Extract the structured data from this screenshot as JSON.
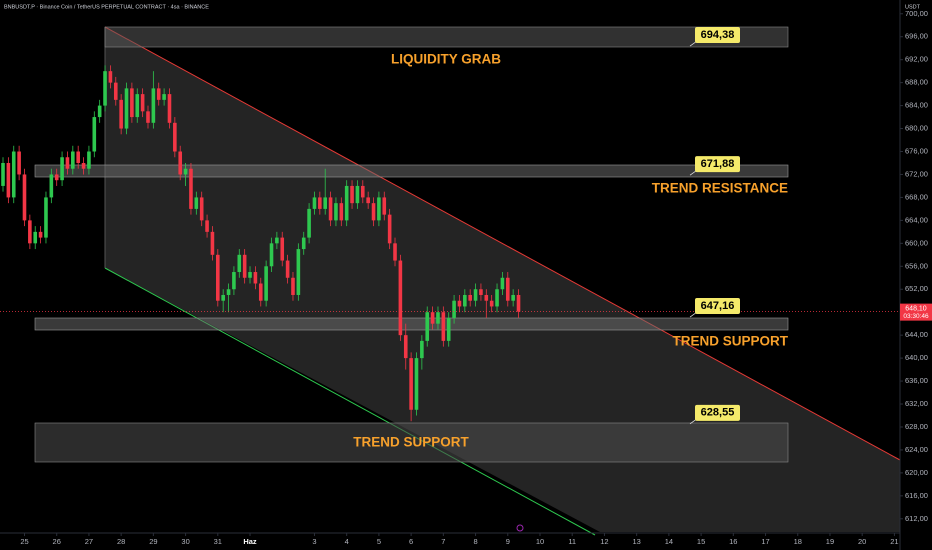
{
  "chart_data": {
    "type": "candlestick",
    "header": "BNBUSDT.P · Binance Coin / TetherUS PERPETUAL CONTRACT · 4sa · BINANCE",
    "currency": "USDT",
    "up_color": "#2ec84f",
    "down_color": "#f23645",
    "x": [
      0,
      1,
      2,
      3,
      4,
      5,
      6,
      7,
      8,
      9,
      10,
      11,
      12,
      13,
      14,
      15,
      16,
      17,
      18,
      19,
      20,
      21,
      22,
      23,
      24,
      25,
      26,
      27,
      28,
      29,
      30,
      31,
      32,
      33,
      34,
      35,
      36,
      37,
      38,
      39,
      40,
      41,
      42,
      43,
      44,
      45,
      46,
      47,
      48,
      49,
      50,
      51,
      52,
      53,
      54,
      55,
      56,
      57,
      58,
      59,
      60,
      61,
      62,
      63,
      64,
      65,
      66,
      67,
      68,
      69,
      70,
      71,
      72,
      73,
      74,
      75,
      76,
      77,
      78,
      79,
      80,
      81,
      82,
      83,
      84,
      85,
      86,
      87,
      88,
      89,
      90,
      91,
      92,
      93,
      94,
      95,
      96
    ],
    "open": [
      670,
      674,
      668,
      676,
      672,
      664,
      660,
      662,
      661,
      668,
      672,
      671,
      675,
      673,
      676,
      674,
      673,
      676,
      682,
      684,
      690,
      688,
      685,
      680,
      687,
      682,
      686,
      683,
      681,
      687,
      685,
      686,
      681,
      676,
      672,
      673,
      666,
      668,
      664,
      662,
      658,
      650,
      651,
      652,
      655,
      658,
      654,
      655,
      653,
      650,
      656,
      660,
      661,
      657,
      654,
      651,
      659,
      661,
      666,
      668,
      666,
      668,
      664,
      667,
      664,
      670,
      667,
      670,
      668,
      667,
      664,
      668,
      665,
      660,
      657,
      644,
      640,
      631,
      640,
      643,
      648,
      646,
      648,
      643,
      647,
      650,
      649,
      651,
      650,
      652,
      651,
      650,
      649,
      652,
      654,
      650,
      651
    ],
    "high": [
      675,
      675,
      677,
      677,
      673,
      665,
      663,
      663,
      669,
      673,
      673,
      676,
      676,
      677,
      677,
      675,
      677,
      683,
      685,
      691,
      691,
      689,
      686,
      688,
      688,
      687,
      687,
      684,
      690,
      688,
      687,
      687,
      682,
      677,
      674,
      674,
      669,
      669,
      665,
      663,
      659,
      652,
      653,
      656,
      659,
      659,
      656,
      656,
      654,
      657,
      661,
      662,
      662,
      658,
      655,
      660,
      662,
      667,
      669,
      669,
      673,
      669,
      668,
      668,
      671,
      671,
      671,
      671,
      669,
      668,
      669,
      669,
      666,
      661,
      658,
      646,
      641,
      641,
      644,
      649,
      649,
      649,
      649,
      648,
      651,
      651,
      652,
      652,
      653,
      653,
      652,
      651,
      653,
      655,
      655,
      652,
      652
    ],
    "low": [
      669,
      667,
      667,
      671,
      663,
      659,
      659,
      660,
      660,
      667,
      670,
      670,
      672,
      672,
      673,
      672,
      672,
      675,
      681,
      683,
      687,
      684,
      679,
      679,
      681,
      681,
      682,
      680,
      680,
      684,
      684,
      680,
      675,
      671,
      670,
      665,
      665,
      663,
      661,
      657,
      649,
      648,
      648,
      651,
      654,
      653,
      653,
      652,
      649,
      649,
      655,
      659,
      656,
      653,
      650,
      650,
      658,
      660,
      665,
      665,
      665,
      663,
      663,
      663,
      663,
      666,
      666,
      667,
      666,
      663,
      663,
      664,
      659,
      656,
      643,
      638,
      629,
      630,
      638,
      642,
      645,
      645,
      642,
      642,
      646,
      648,
      648,
      649,
      649,
      650,
      647,
      648,
      648,
      651,
      649,
      649,
      647
    ],
    "close": [
      674,
      668,
      676,
      672,
      664,
      660,
      662,
      661,
      668,
      672,
      671,
      675,
      673,
      676,
      674,
      673,
      676,
      682,
      684,
      690,
      688,
      685,
      680,
      687,
      682,
      686,
      683,
      681,
      687,
      685,
      686,
      681,
      676,
      672,
      673,
      666,
      668,
      664,
      662,
      658,
      650,
      651,
      652,
      655,
      658,
      654,
      655,
      653,
      650,
      656,
      660,
      661,
      657,
      654,
      651,
      659,
      661,
      666,
      668,
      666,
      668,
      664,
      667,
      664,
      670,
      667,
      670,
      668,
      667,
      664,
      668,
      665,
      660,
      657,
      644,
      640,
      631,
      640,
      643,
      648,
      646,
      648,
      643,
      647,
      650,
      649,
      651,
      650,
      652,
      651,
      650,
      649,
      652,
      654,
      650,
      651,
      648.1
    ],
    "xlim": [
      -0.56,
      167.04
    ],
    "ylim": [
      609.7,
      702.4
    ],
    "xticks": [
      {
        "value": 4,
        "label": "25"
      },
      {
        "value": 10,
        "label": "26"
      },
      {
        "value": 16,
        "label": "27"
      },
      {
        "value": 22,
        "label": "28"
      },
      {
        "value": 28,
        "label": "29"
      },
      {
        "value": 34,
        "label": "30"
      },
      {
        "value": 40,
        "label": "31"
      },
      {
        "value": 46,
        "label": "Haz"
      },
      {
        "value": 58,
        "label": "3"
      },
      {
        "value": 64,
        "label": "4"
      },
      {
        "value": 70,
        "label": "5"
      },
      {
        "value": 76,
        "label": "6"
      },
      {
        "value": 82,
        "label": "7"
      },
      {
        "value": 88,
        "label": "8"
      },
      {
        "value": 94,
        "label": "9"
      },
      {
        "value": 100,
        "label": "10"
      },
      {
        "value": 106,
        "label": "11"
      },
      {
        "value": 112,
        "label": "12"
      },
      {
        "value": 118,
        "label": "13"
      },
      {
        "value": 124,
        "label": "14"
      },
      {
        "value": 130,
        "label": "15"
      },
      {
        "value": 136,
        "label": "16"
      },
      {
        "value": 142,
        "label": "17"
      },
      {
        "value": 148,
        "label": "18"
      },
      {
        "value": 154,
        "label": "19"
      },
      {
        "value": 160,
        "label": "20"
      },
      {
        "value": 166,
        "label": "21"
      }
    ],
    "yticks": [
      {
        "value": 612,
        "label": "612,00"
      },
      {
        "value": 616,
        "label": "616,00"
      },
      {
        "value": 620,
        "label": "620,00"
      },
      {
        "value": 624,
        "label": "624,00"
      },
      {
        "value": 628,
        "label": "628,00"
      },
      {
        "value": 632,
        "label": "632,00"
      },
      {
        "value": 636,
        "label": "636,00"
      },
      {
        "value": 640,
        "label": "640,00"
      },
      {
        "value": 644,
        "label": "644,00"
      },
      {
        "value": 648,
        "label": "648,00"
      },
      {
        "value": 652,
        "label": "652,00"
      },
      {
        "value": 656,
        "label": "656,00"
      },
      {
        "value": 660,
        "label": "660,00"
      },
      {
        "value": 664,
        "label": "664,00"
      },
      {
        "value": 668,
        "label": "668,00"
      },
      {
        "value": 672,
        "label": "672,00"
      },
      {
        "value": 676,
        "label": "676,00"
      },
      {
        "value": 680,
        "label": "680,00"
      },
      {
        "value": 684,
        "label": "684,00"
      },
      {
        "value": 688,
        "label": "688,00"
      },
      {
        "value": 692,
        "label": "692,00"
      },
      {
        "value": 696,
        "label": "696,00"
      },
      {
        "value": 700,
        "label": "700,00"
      }
    ],
    "last_price": {
      "value": 648.1,
      "label": "648,10"
    },
    "countdown": "03:30:46",
    "levels": [
      {
        "value": 694.38,
        "label": "694,38"
      },
      {
        "value": 671.88,
        "label": "671,88"
      },
      {
        "value": 647.16,
        "label": "647,16"
      },
      {
        "value": 628.55,
        "label": "628,55"
      }
    ],
    "annotations": [
      "LIQUIDITY GRAB",
      "TREND RESISTANCE",
      "TREND SUPPORT",
      "TREND SUPPORT"
    ]
  }
}
